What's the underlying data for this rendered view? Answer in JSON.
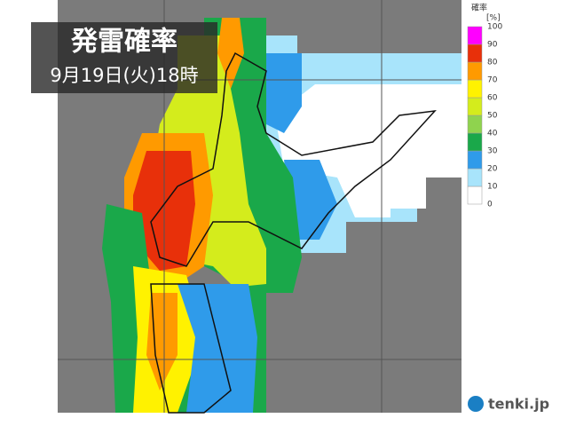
{
  "header": {
    "title": "発雷確率",
    "datetime": "9月19日(火)18時"
  },
  "legend": {
    "title": "確率",
    "unit": "[%]",
    "ticks": [
      0,
      10,
      20,
      30,
      40,
      50,
      60,
      70,
      80,
      90,
      100
    ],
    "colors": [
      "#ffffff",
      "#a8e4fb",
      "#2f9bea",
      "#1aa84a",
      "#8fd34e",
      "#d4ec1c",
      "#fff200",
      "#ff9a00",
      "#e8300a",
      "#ff00ff"
    ]
  },
  "logo": "tenki.jp"
}
